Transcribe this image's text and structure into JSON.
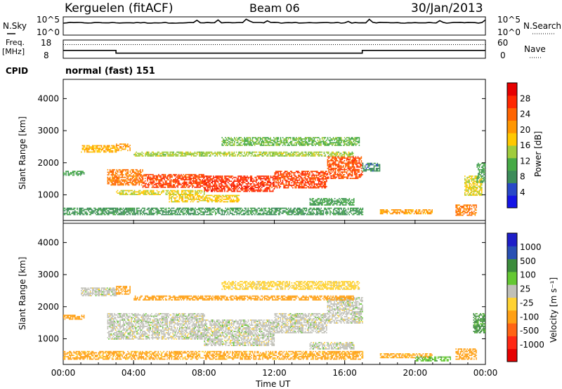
{
  "header": {
    "station": "Kerguelen (fitACF)",
    "beam": "Beam 06",
    "date": "30/Jan/2013"
  },
  "left_labels": {
    "nsky": "N.Sky",
    "freq_line1": "Freq.",
    "freq_line2": "[MHz]",
    "cpid": "CPID"
  },
  "right_labels": {
    "nsearch": "N.Search",
    "nave": "Nave"
  },
  "cpid_text": "normal (fast) 151",
  "colors": {
    "power": [
      "#1414e6",
      "#2848c8",
      "#3c8c5a",
      "#46aa46",
      "#a0cc3c",
      "#ffc800",
      "#ff9600",
      "#ff6400",
      "#ff2800",
      "#e60000"
    ],
    "velocity": [
      "#1e1ec8",
      "#2850b4",
      "#3c8c3c",
      "#64c832",
      "#c0c0b8",
      "#ffd232",
      "#ffa014",
      "#ff6414",
      "#ff2814",
      "#e60000"
    ],
    "ground_scatter": "#c0c0b8"
  },
  "chart_data": [
    {
      "type": "line",
      "panel": "noise",
      "ylabel_left": "N.Sky",
      "ylabel_right": "N.Search",
      "yticks_left": [
        "10^5",
        "10^0"
      ],
      "yticks_right": [
        "10^5",
        "10^0"
      ],
      "description_series": [
        {
          "name": "N.Sky",
          "x": [
            "00:00",
            "04:00",
            "08:00",
            "12:00",
            "16:00",
            "20:00",
            "24:00"
          ],
          "values": [
            10000,
            10000,
            10000,
            10000,
            10000,
            10000,
            10000
          ]
        }
      ]
    },
    {
      "type": "line",
      "panel": "frequency",
      "ylabel_left": "Freq. [MHz]",
      "ylabel_right": "Nave",
      "yticks_left": [
        "18",
        "8"
      ],
      "yticks_right": [
        "60",
        "0"
      ],
      "ylim_left": [
        8,
        18
      ],
      "series": [
        {
          "name": "Freq.",
          "x": [
            0,
            3,
            3,
            17,
            17,
            24
          ],
          "values": [
            12.3,
            12.3,
            10.8,
            10.8,
            12.3,
            12.3
          ]
        },
        {
          "name": "Nave",
          "x": [
            0,
            24
          ],
          "values": [
            45,
            45
          ]
        }
      ]
    },
    {
      "type": "heatmap",
      "panel": "power",
      "ylabel": "Slant Range [km]",
      "ylim": [
        200,
        4600
      ],
      "yticks": [
        "1000",
        "2000",
        "3000",
        "4000"
      ],
      "xlim": [
        0,
        24
      ],
      "colorbar_label": "Power [dB]",
      "colorbar_ticks": [
        "4",
        "8",
        "12",
        "16",
        "20",
        "24",
        "28"
      ],
      "bands": [
        {
          "t": [
            0,
            1.2
          ],
          "r": [
            1600,
            1750
          ],
          "v": 10
        },
        {
          "t": [
            1.0,
            3.0
          ],
          "r": [
            2350,
            2550
          ],
          "v": 18
        },
        {
          "t": [
            3.0,
            3.8
          ],
          "r": [
            2400,
            2600
          ],
          "v": 20
        },
        {
          "t": [
            2.5,
            4.5
          ],
          "r": [
            1300,
            1800
          ],
          "v": 22
        },
        {
          "t": [
            4.5,
            8.0
          ],
          "r": [
            1250,
            1650
          ],
          "v": 25
        },
        {
          "t": [
            8.0,
            12.0
          ],
          "r": [
            1100,
            1600
          ],
          "v": 26
        },
        {
          "t": [
            12.0,
            15.0
          ],
          "r": [
            1200,
            1750
          ],
          "v": 25
        },
        {
          "t": [
            15.0,
            17.0
          ],
          "r": [
            1500,
            2200
          ],
          "v": 24
        },
        {
          "t": [
            3.0,
            8.0
          ],
          "r": [
            1000,
            1150
          ],
          "v": 16
        },
        {
          "t": [
            6.0,
            10.0
          ],
          "r": [
            800,
            1000
          ],
          "v": 17
        },
        {
          "t": [
            4.0,
            16.5
          ],
          "r": [
            2200,
            2350
          ],
          "v": 14
        },
        {
          "t": [
            9.0,
            16.8
          ],
          "r": [
            2550,
            2800
          ],
          "v": 12
        },
        {
          "t": [
            0,
            17.0
          ],
          "r": [
            380,
            600
          ],
          "v": 9
        },
        {
          "t": [
            14.0,
            16.5
          ],
          "r": [
            700,
            900
          ],
          "v": 10
        },
        {
          "t": [
            17.0,
            18.0
          ],
          "r": [
            1750,
            2000
          ],
          "v": 8
        },
        {
          "t": [
            18.0,
            21.0
          ],
          "r": [
            400,
            550
          ],
          "v": 20
        },
        {
          "t": [
            22.3,
            23.5
          ],
          "r": [
            350,
            700
          ],
          "v": 22
        },
        {
          "t": [
            22.8,
            23.8
          ],
          "r": [
            1000,
            1600
          ],
          "v": 16
        },
        {
          "t": [
            23.5,
            24.0
          ],
          "r": [
            1400,
            2000
          ],
          "v": 10
        }
      ]
    },
    {
      "type": "heatmap",
      "panel": "velocity",
      "ylabel": "Slant Range [km]",
      "ylim": [
        200,
        4600
      ],
      "yticks": [
        "1000",
        "2000",
        "3000",
        "4000"
      ],
      "xlim": [
        0,
        24
      ],
      "xticks": [
        "00:00",
        "04:00",
        "08:00",
        "12:00",
        "16:00",
        "20:00",
        "00:00"
      ],
      "xlabel": "Time UT",
      "colorbar_label": "Velocity [m s⁻¹]",
      "colorbar_ticks": [
        "1000",
        "500",
        "100",
        "25",
        "-25",
        "-100",
        "-500",
        "-1000"
      ],
      "bands": [
        {
          "t": [
            0,
            1.2
          ],
          "r": [
            1600,
            1750
          ],
          "v": -200
        },
        {
          "t": [
            1.0,
            3.0
          ],
          "r": [
            2350,
            2600
          ],
          "v": 0
        },
        {
          "t": [
            3.0,
            3.8
          ],
          "r": [
            2400,
            2650
          ],
          "v": -300
        },
        {
          "t": [
            2.5,
            8.0
          ],
          "r": [
            1000,
            1800
          ],
          "v": 0
        },
        {
          "t": [
            8.0,
            12.0
          ],
          "r": [
            800,
            1600
          ],
          "v": 0
        },
        {
          "t": [
            12.0,
            15.0
          ],
          "r": [
            1200,
            1800
          ],
          "v": 0
        },
        {
          "t": [
            15.0,
            17.0
          ],
          "r": [
            1500,
            2300
          ],
          "v": 0
        },
        {
          "t": [
            4.0,
            16.5
          ],
          "r": [
            2200,
            2350
          ],
          "v": -150
        },
        {
          "t": [
            9.0,
            16.8
          ],
          "r": [
            2550,
            2800
          ],
          "v": -50
        },
        {
          "t": [
            0,
            17.0
          ],
          "r": [
            380,
            620
          ],
          "v": -120
        },
        {
          "t": [
            14.0,
            16.5
          ],
          "r": [
            700,
            900
          ],
          "v": 0
        },
        {
          "t": [
            18.0,
            21.0
          ],
          "r": [
            400,
            550
          ],
          "v": -120
        },
        {
          "t": [
            22.3,
            23.5
          ],
          "r": [
            350,
            700
          ],
          "v": -400
        },
        {
          "t": [
            23.3,
            24.0
          ],
          "r": [
            1200,
            1800
          ],
          "v": 120
        },
        {
          "t": [
            20.0,
            22.0
          ],
          "r": [
            300,
            450
          ],
          "v": 80
        }
      ]
    }
  ]
}
